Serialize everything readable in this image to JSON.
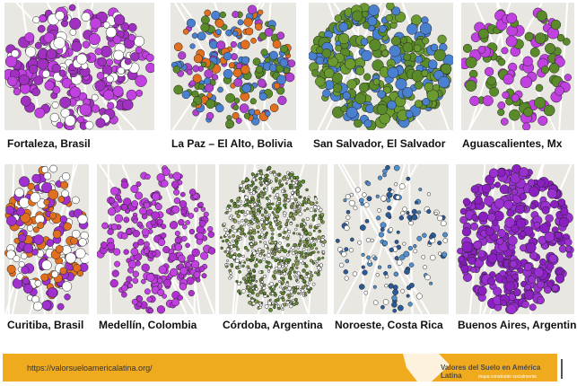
{
  "maps": [
    {
      "label": "Fortaleza, Brasil",
      "colors": [
        "#c040e0",
        "#ffffff",
        "#a030c0"
      ]
    },
    {
      "label": "La Paz – El Alto, Bolivia",
      "colors": [
        "#5a8a2a",
        "#4a80d0",
        "#b040d0",
        "#e07020"
      ]
    },
    {
      "label": "San Salvador, El Salvador",
      "colors": [
        "#5a8a2a",
        "#6a9a30",
        "#4a80d0"
      ]
    },
    {
      "label": "Aguascalientes, Mx",
      "colors": [
        "#5a8a2a",
        "#c040e0"
      ]
    },
    {
      "label": "Curitiba, Brasil",
      "colors": [
        "#a030d0",
        "#e07020",
        "#ffffff"
      ]
    },
    {
      "label": "Medellín, Colombia",
      "colors": [
        "#c040e0",
        "#b030d0"
      ]
    },
    {
      "label": "Córdoba, Argentina",
      "colors": [
        "#5a8a2a",
        "#8aa050",
        "#ffffff"
      ]
    },
    {
      "label": "Noroeste, Costa Rica",
      "colors": [
        "#ffffff",
        "#2a5a9a",
        "#5090d0"
      ]
    },
    {
      "label": "Buenos Aires, Argentina",
      "colors": [
        "#8a20c0",
        "#9a30d0"
      ]
    }
  ],
  "footer": {
    "url": "https://valorsueloamericalatina.org/",
    "brand": "Valores del Suelo en América Latina",
    "tagline": "mapa construido socialmente",
    "color": "#f0aa1e"
  }
}
